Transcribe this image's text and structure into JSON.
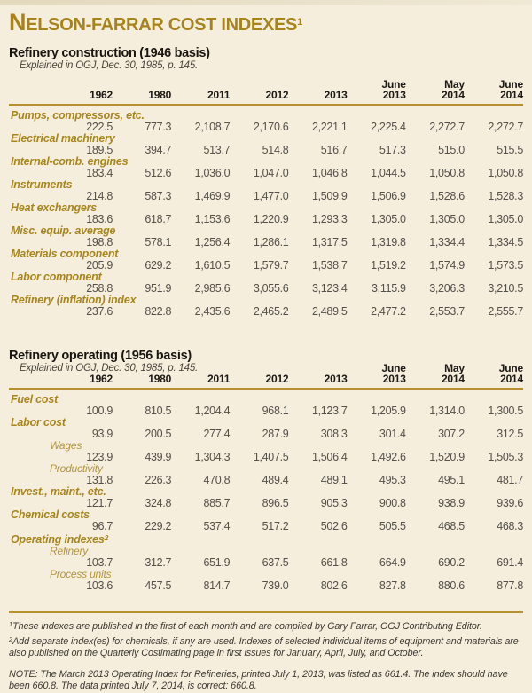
{
  "page": {
    "bg_color": "#F5EEDC",
    "accent_gold": "#A8861F",
    "rule_gold": "#B5922C"
  },
  "title": {
    "initial": "N",
    "rest": "ELSON-FARRAR COST INDEXES",
    "superscript": "1"
  },
  "sections": [
    {
      "heading": "Refinery construction (1946 basis)",
      "subheading": "Explained in OGJ, Dec. 30, 1985, p. 145.",
      "columns": [
        "1962",
        "1980",
        "2011",
        "2012",
        "2013",
        "June\n2013",
        "May\n2014",
        "June\n2014"
      ],
      "rows": [
        {
          "label": "Pumps, compressors, etc.",
          "values": [
            "222.5",
            "777.3",
            "2,108.7",
            "2,170.6",
            "2,221.1",
            "2,225.4",
            "2,272.7",
            "2,272.7"
          ]
        },
        {
          "label": "Electrical machinery",
          "values": [
            "189.5",
            "394.7",
            "513.7",
            "514.8",
            "516.7",
            "517.3",
            "515.0",
            "515.5"
          ]
        },
        {
          "label": "Internal-comb. engines",
          "values": [
            "183.4",
            "512.6",
            "1,036.0",
            "1,047.0",
            "1,046.8",
            "1,044.5",
            "1,050.8",
            "1,050.8"
          ]
        },
        {
          "label": "Instruments",
          "values": [
            "214.8",
            "587.3",
            "1,469.9",
            "1,477.0",
            "1,509.9",
            "1,506.9",
            "1,528.6",
            "1,528.3"
          ]
        },
        {
          "label": "Heat exchangers",
          "values": [
            "183.6",
            "618.7",
            "1,153.6",
            "1,220.9",
            "1,293.3",
            "1,305.0",
            "1,305.0",
            "1,305.0"
          ]
        },
        {
          "label": "Misc. equip. average",
          "values": [
            "198.8",
            "578.1",
            "1,256.4",
            "1,286.1",
            "1,317.5",
            "1,319.8",
            "1,334.4",
            "1,334.5"
          ]
        },
        {
          "label": "Materials component",
          "values": [
            "205.9",
            "629.2",
            "1,610.5",
            "1,579.7",
            "1,538.7",
            "1,519.2",
            "1,574.9",
            "1,573.5"
          ]
        },
        {
          "label": "Labor component",
          "values": [
            "258.8",
            "951.9",
            "2,985.6",
            "3,055.6",
            "3,123.4",
            "3,115.9",
            "3,206.3",
            "3,210.5"
          ]
        },
        {
          "label": "Refinery (inflation) index",
          "values": [
            "237.6",
            "822.8",
            "2,435.6",
            "2,465.2",
            "2,489.5",
            "2,477.2",
            "2,553.7",
            "2,555.7"
          ]
        }
      ]
    },
    {
      "heading": "Refinery operating (1956 basis)",
      "subheading": "Explained in OGJ, Dec. 30, 1985, p. 145.",
      "columns": [
        "1962",
        "1980",
        "2011",
        "2012",
        "2013",
        "June\n2013",
        "May\n2014",
        "June\n2014"
      ],
      "rows": [
        {
          "label": "Fuel cost",
          "values": [
            "100.9",
            "810.5",
            "1,204.4",
            "968.1",
            "1,123.7",
            "1,205.9",
            "1,314.0",
            "1,300.5"
          ]
        },
        {
          "label": "Labor cost",
          "values": [
            "93.9",
            "200.5",
            "277.4",
            "287.9",
            "308.3",
            "301.4",
            "307.2",
            "312.5"
          ]
        },
        {
          "label": "Wages",
          "indent": true,
          "values": [
            "123.9",
            "439.9",
            "1,304.3",
            "1,407.5",
            "1,506.4",
            "1,492.6",
            "1,520.9",
            "1,505.3"
          ]
        },
        {
          "label": "Productivity",
          "indent": true,
          "values": [
            "131.8",
            "226.3",
            "470.8",
            "489.4",
            "489.1",
            "495.3",
            "495.1",
            "481.7"
          ]
        },
        {
          "label": "Invest., maint., etc.",
          "values": [
            "121.7",
            "324.8",
            "885.7",
            "896.5",
            "905.3",
            "900.8",
            "938.9",
            "939.6"
          ]
        },
        {
          "label": "Chemical costs",
          "values": [
            "96.7",
            "229.2",
            "537.4",
            "517.2",
            "502.6",
            "505.5",
            "468.5",
            "468.3"
          ]
        },
        {
          "label": "Operating indexes",
          "label_superscript": "2",
          "values": []
        },
        {
          "label": "Refinery",
          "indent": true,
          "values": [
            "103.7",
            "312.7",
            "651.9",
            "637.5",
            "661.8",
            "664.9",
            "690.2",
            "691.4"
          ]
        },
        {
          "label": "Process units",
          "indent": true,
          "values": [
            "103.6",
            "457.5",
            "814.7",
            "739.0",
            "802.6",
            "827.8",
            "880.6",
            "877.8"
          ]
        }
      ]
    }
  ],
  "footnotes": [
    {
      "marker": "1",
      "text": "These indexes are published in the first of each month and are compiled by Gary Farrar, OGJ Contributing Editor."
    },
    {
      "marker": "2",
      "text": "Add separate index(es) for chemicals, if any are used. Indexes of selected individual items of equipment and materials are also published on the Quarterly Costimating page in first issues for January, April, July, and October."
    }
  ],
  "note": "NOTE: The March 2013 Operating Index for Refineries, printed July 1, 2013, was listed as 661.4. The index should have been 660.8. The data printed July 7, 2014, is correct: 660.8."
}
